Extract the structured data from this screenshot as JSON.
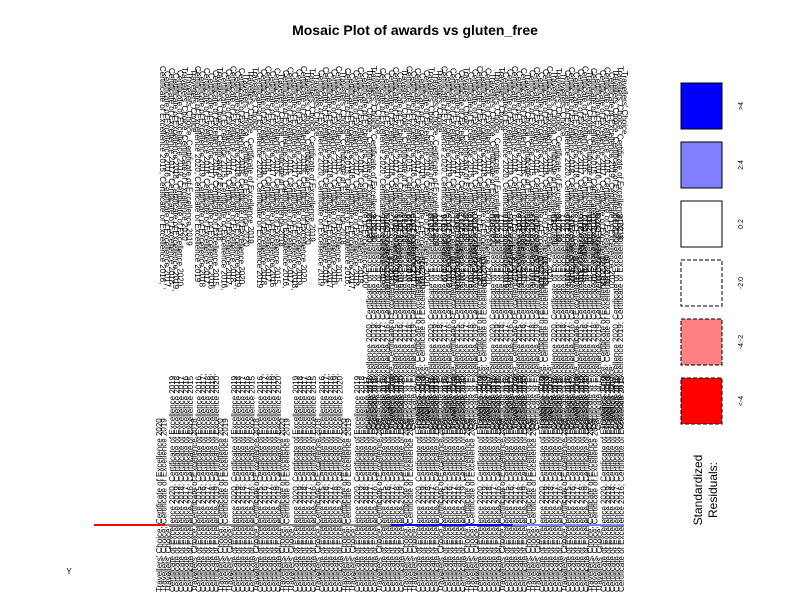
{
  "chart_data": {
    "type": "mosaic",
    "title": "Mosaic Plot of awards vs gluten_free",
    "x_variable": "awards",
    "y_variable": "gluten_free",
    "y_levels": [
      "Y"
    ],
    "award_labels": [
      "Certificate of Excellence 2015, Certificate of Excellence 2016,",
      "Certificate of Excellence 2016, Certificate of Excellence 2017,",
      "Certificate of Excellence 2017, Certificate of Excellence 2018,",
      "Certificate of Excellence 2018, Certificate of Excellence 2019,",
      "Certificate of Excellence 2019, Certificate of Excellence 2020",
      "Travellers' Choice, Certificate of Excellence 2020",
      "Travellers' Choice, Certificate of Excellence 2019",
      "Travellers' Choice",
      "Certificate of Excellence 2020, Certificate of Excellence 2019",
      "Certificate of Excellence 2019, Certificate of Excellence 2018",
      "Certificate of Excellence 2018, Certificate of Excellence 2017",
      "Certificate of Excellence 2017, Certificate of Excellence 2016",
      "Certificate of Excellence 2016, Certificate of Excellence 2015",
      "Travellers' Choice, Certificate of Excellence 2018"
    ],
    "legend": {
      "title": "Standardized Residuals:",
      "entries": [
        {
          "label": ">4",
          "fill": "#0000ff",
          "border": "solid"
        },
        {
          "label": "2:4",
          "fill": "#8080ff",
          "border": "solid"
        },
        {
          "label": "0:2",
          "fill": "#ffffff",
          "border": "solid"
        },
        {
          "label": "-2:0",
          "fill": "#ffffff",
          "border": "dashed"
        },
        {
          "label": "-4:-2",
          "fill": "#ff8080",
          "border": "dashed"
        },
        {
          "label": "<-4",
          "fill": "#ff0000",
          "border": "dashed"
        }
      ]
    },
    "residual_segments": [
      {
        "from": 0.0,
        "to": 0.135,
        "color": "#ff0000"
      },
      {
        "from": 0.135,
        "to": 0.56,
        "color": "#888888"
      },
      {
        "from": 0.56,
        "to": 0.79,
        "color": "#0000ff"
      },
      {
        "from": 0.79,
        "to": 1.0,
        "color": "#8080ff"
      }
    ]
  }
}
